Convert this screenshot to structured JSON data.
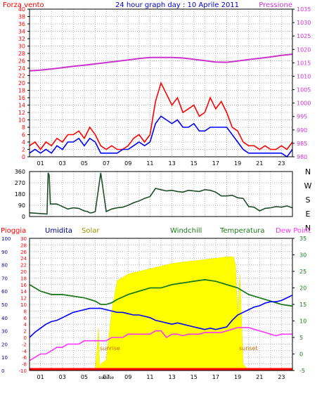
{
  "title": "24 hour graph day : 10 Aprile 2011",
  "colors": {
    "wind": "#ff0000",
    "gust": "#0000ff",
    "pressure": "#cc33cc",
    "direction": "#1e4d2b",
    "humidity": "#0000ff",
    "solar": "#ffff00",
    "windchill": "#1a7a1a",
    "temperature": "#1a7a1a",
    "dewpoint": "#ff33ff",
    "rain": "#ff0000",
    "grid": "#b0b0b0"
  },
  "x_ticks": [
    "01",
    "03",
    "05",
    "07",
    "09",
    "11",
    "13",
    "15",
    "17",
    "19",
    "21",
    "23"
  ],
  "chart_data": [
    {
      "type": "line",
      "left_label": "Forza vento",
      "right_label": "Pressione",
      "x_range": [
        0,
        24
      ],
      "ylim": [
        0,
        40
      ],
      "y_ticks": [
        0,
        2,
        4,
        6,
        8,
        10,
        12,
        14,
        16,
        18,
        20,
        22,
        24,
        26,
        28,
        30,
        32,
        34,
        36,
        38,
        40
      ],
      "right_ylim": [
        980,
        1035
      ],
      "right_ticks": [
        980,
        985,
        990,
        995,
        1000,
        1005,
        1010,
        1015,
        1020,
        1025,
        1030,
        1035
      ],
      "series": [
        {
          "key": "wind",
          "axis": "left",
          "x": [
            0,
            0.5,
            1,
            1.5,
            2,
            2.5,
            3,
            3.5,
            4,
            4.5,
            5,
            5.5,
            6,
            6.5,
            7,
            7.5,
            8,
            8.5,
            9,
            9.5,
            10,
            10.5,
            11,
            11.5,
            12,
            12.5,
            13,
            13.5,
            14,
            14.5,
            15,
            15.5,
            16,
            16.5,
            17,
            17.5,
            18,
            18.5,
            19,
            19.5,
            20,
            20.5,
            21,
            21.5,
            22,
            22.5,
            23,
            23.5,
            24
          ],
          "values": [
            3,
            4,
            2,
            4,
            3,
            5,
            4,
            6,
            6,
            7,
            5,
            8,
            6,
            3,
            2,
            3,
            2,
            2,
            3,
            5,
            6,
            4,
            6,
            15,
            20,
            17,
            14,
            16,
            12,
            13,
            14,
            11,
            12,
            16,
            13,
            15,
            12,
            8,
            7,
            4,
            3,
            3,
            2,
            3,
            2,
            2,
            3,
            2,
            4
          ]
        },
        {
          "key": "gust",
          "axis": "left",
          "x": [
            0,
            0.5,
            1,
            1.5,
            2,
            2.5,
            3,
            3.5,
            4,
            4.5,
            5,
            5.5,
            6,
            6.5,
            7,
            7.5,
            8,
            8.5,
            9,
            9.5,
            10,
            10.5,
            11,
            11.5,
            12,
            12.5,
            13,
            13.5,
            14,
            14.5,
            15,
            15.5,
            16,
            16.5,
            17,
            17.5,
            18,
            18.5,
            19,
            19.5,
            20,
            20.5,
            21,
            21.5,
            22,
            22.5,
            23,
            23.5,
            24
          ],
          "values": [
            1,
            2,
            1,
            2,
            1,
            3,
            2,
            4,
            4,
            5,
            3,
            5,
            4,
            1,
            1,
            1,
            1,
            2,
            2,
            3,
            4,
            3,
            4,
            9,
            11,
            10,
            9,
            10,
            8,
            8,
            9,
            7,
            7,
            8,
            8,
            8,
            8,
            6,
            4,
            2,
            1,
            1,
            1,
            1,
            1,
            1,
            1,
            0,
            2
          ]
        },
        {
          "key": "pressure",
          "axis": "right",
          "x": [
            0,
            1,
            2,
            3,
            4,
            5,
            6,
            7,
            8,
            9,
            10,
            11,
            12,
            13,
            14,
            15,
            16,
            17,
            18,
            19,
            20,
            21,
            22,
            23,
            24
          ],
          "values": [
            1012,
            1012.3,
            1012.7,
            1013.2,
            1013.7,
            1014.1,
            1014.6,
            1015.1,
            1015.6,
            1016.1,
            1016.6,
            1017,
            1017,
            1017,
            1016.8,
            1016.3,
            1015.8,
            1015.3,
            1015.2,
            1015.7,
            1016.2,
            1016.7,
            1017.2,
            1017.8,
            1018.2
          ]
        }
      ]
    },
    {
      "type": "line",
      "right_label": "N W S E N",
      "x_range": [
        0,
        24
      ],
      "ylim": [
        0,
        360
      ],
      "y_ticks": [
        0,
        90,
        180,
        270,
        360
      ],
      "series": [
        {
          "key": "direction",
          "x": [
            0,
            0.8,
            1.6,
            1.7,
            1.8,
            1.9,
            2.5,
            3,
            3.5,
            4,
            4.5,
            5,
            5.3,
            5.5,
            5.7,
            6,
            6.5,
            7,
            7.5,
            8,
            8.5,
            9,
            9.5,
            10,
            10.5,
            11,
            11.5,
            12,
            12.5,
            13,
            13.5,
            14,
            14.5,
            15,
            15.5,
            16,
            16.5,
            17,
            17.5,
            18,
            18.5,
            19,
            19.5,
            20,
            20.5,
            21,
            21.5,
            22,
            22.5,
            23,
            23.5,
            24
          ],
          "values": [
            30,
            25,
            20,
            350,
            330,
            100,
            100,
            80,
            60,
            70,
            65,
            45,
            40,
            30,
            30,
            40,
            350,
            40,
            60,
            70,
            75,
            90,
            110,
            125,
            145,
            160,
            225,
            215,
            205,
            210,
            200,
            195,
            210,
            205,
            200,
            215,
            210,
            195,
            165,
            165,
            170,
            150,
            145,
            80,
            75,
            45,
            65,
            70,
            80,
            75,
            85,
            70
          ]
        }
      ]
    },
    {
      "type": "line",
      "labels": {
        "rain": "Pioggia",
        "humidity": "Umidita",
        "solar": "Solar",
        "windchill": "Windchill",
        "temperature": "Temperatura",
        "dewpoint": "Dew Point"
      },
      "annotations": {
        "sunrise": "sunrise",
        "sunset": "sunset"
      },
      "x_range": [
        0,
        24
      ],
      "humidity_ticks": [
        0,
        10,
        20,
        30,
        40,
        50,
        60,
        70,
        80,
        90,
        100
      ],
      "left_ylim": [
        -10,
        30
      ],
      "left_ticks": [
        -10,
        -8,
        -6,
        -4,
        -2,
        0,
        2,
        4,
        6,
        8,
        10,
        12,
        14,
        16,
        18,
        20,
        22,
        24,
        26,
        28,
        30
      ],
      "right_ylim": [
        -5,
        35
      ],
      "right_ticks": [
        -5,
        0,
        5,
        10,
        15,
        20,
        25,
        30,
        35
      ],
      "series": [
        {
          "key": "solar",
          "axis": "humidity",
          "fill": true,
          "x": [
            6,
            6.3,
            6.4,
            6.5,
            7,
            7.5,
            8,
            9,
            10,
            11,
            12,
            13,
            14,
            15,
            16,
            17,
            18,
            18.6,
            18.8,
            19,
            19.2,
            19.5,
            20
          ],
          "values": [
            0,
            32,
            0,
            5,
            8,
            45,
            68,
            73,
            75,
            77,
            79,
            81,
            82,
            83,
            84,
            85,
            86,
            86,
            80,
            40,
            73,
            5,
            0
          ]
        },
        {
          "key": "windchill",
          "axis": "right",
          "x": [
            0,
            1,
            2,
            3,
            4,
            5,
            6,
            6.5,
            7,
            7.5,
            8,
            9,
            10,
            11,
            12,
            13,
            14,
            15,
            16,
            17,
            18,
            19,
            20,
            21,
            22,
            23,
            24
          ],
          "values": [
            21,
            19,
            18,
            18,
            17.5,
            17,
            16,
            15,
            15,
            15.5,
            16.5,
            18,
            19,
            20,
            20,
            21,
            21.5,
            22,
            22.5,
            22,
            21,
            20,
            18,
            17,
            16,
            15,
            14.5
          ]
        },
        {
          "key": "temperature",
          "axis": "right",
          "x": [
            0,
            1,
            2,
            3,
            4,
            5,
            6,
            6.5,
            7,
            7.5,
            8,
            9,
            10,
            11,
            12,
            13,
            14,
            15,
            16,
            17,
            18,
            19,
            20,
            21,
            22,
            23,
            24
          ],
          "values": [
            21,
            19,
            18,
            18,
            17.5,
            17,
            16,
            15,
            15,
            15.5,
            16.5,
            18,
            19,
            20,
            20,
            21,
            21.5,
            22,
            22.5,
            22,
            21,
            20,
            18,
            17,
            16,
            15,
            14.5
          ]
        },
        {
          "key": "humidity",
          "axis": "humidity",
          "x": [
            0,
            0.5,
            1,
            1.5,
            2,
            2.5,
            3,
            3.5,
            4,
            4.5,
            5,
            5.5,
            6,
            6.5,
            7,
            7.5,
            8,
            8.5,
            9,
            9.5,
            10,
            10.5,
            11,
            11.5,
            12,
            12.5,
            13,
            13.5,
            14,
            14.5,
            15,
            15.5,
            16,
            16.5,
            17,
            17.5,
            18,
            18.5,
            19,
            19.5,
            20,
            20.5,
            21,
            21.5,
            22,
            22.5,
            23,
            23.5,
            24
          ],
          "values": [
            25,
            29,
            32,
            35,
            37,
            38,
            40,
            42,
            44,
            45,
            46,
            47,
            47,
            47,
            46,
            45,
            44,
            44,
            43,
            42,
            42,
            41,
            40,
            38,
            37,
            36,
            35,
            36,
            35,
            34,
            33,
            32,
            31,
            32,
            31,
            32,
            33,
            38,
            42,
            44,
            46,
            48,
            49,
            51,
            52,
            52,
            53,
            55,
            57
          ]
        },
        {
          "key": "dewpoint",
          "axis": "left",
          "x": [
            0,
            0.5,
            1,
            1.5,
            2,
            2.5,
            3,
            3.5,
            4,
            4.5,
            5,
            5.5,
            6,
            6.5,
            7,
            7.5,
            8,
            8.5,
            9,
            9.5,
            10,
            10.5,
            11,
            11.5,
            12,
            12.5,
            13,
            13.5,
            14,
            14.5,
            15,
            15.5,
            16,
            16.5,
            17,
            17.5,
            18,
            18.5,
            19,
            19.5,
            20,
            20.5,
            21,
            21.5,
            22,
            22.5,
            23,
            23.5,
            24
          ],
          "values": [
            -7,
            -6,
            -5,
            -5,
            -4,
            -3,
            -3,
            -2,
            -2,
            -2,
            -1,
            -1,
            -1,
            -1,
            -1,
            0,
            0,
            0,
            1,
            1,
            1,
            1,
            1,
            2,
            2,
            0,
            1,
            1,
            0.5,
            1,
            1,
            1,
            1.5,
            1.5,
            1.5,
            1.5,
            2,
            2.5,
            3,
            3,
            3,
            2.5,
            2,
            1.5,
            1,
            0.5,
            1,
            1,
            1
          ]
        },
        {
          "key": "rain",
          "axis": "humidity",
          "x": [
            0,
            24
          ],
          "values": [
            0,
            0
          ]
        }
      ]
    }
  ]
}
